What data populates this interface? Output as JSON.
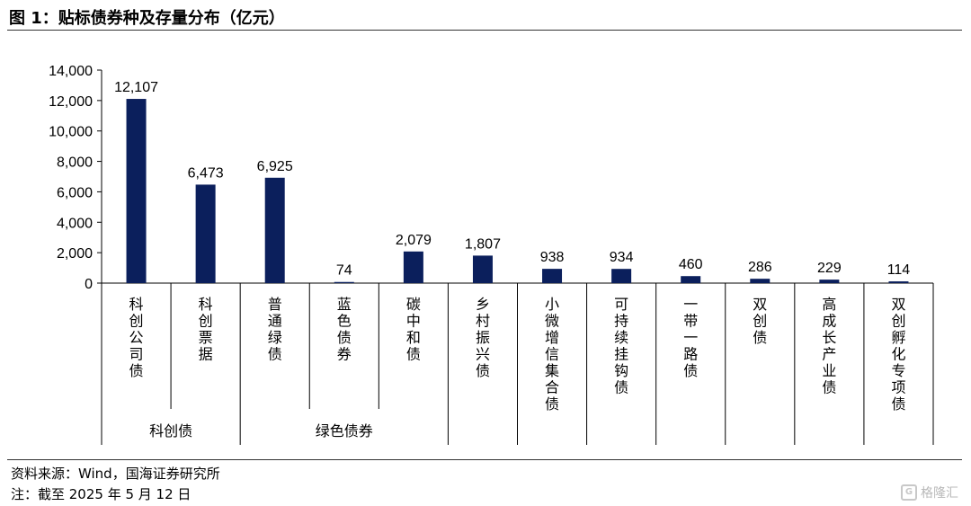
{
  "header": {
    "title": "图 1：贴标债券种及存量分布（亿元）"
  },
  "footer": {
    "source": "资料来源：Wind，国海证券研究所",
    "note": "注：截至 2025 年 5 月 12 日"
  },
  "watermark": {
    "text": "格隆汇",
    "icon": "glh-logo-icon"
  },
  "colors": {
    "bar": "#0b1f5c",
    "axis": "#000000"
  },
  "chart_data": {
    "type": "bar",
    "title": "",
    "xlabel": "",
    "ylabel": "",
    "ylim": [
      0,
      14000
    ],
    "yticks": [
      "0",
      "2,000",
      "4,000",
      "6,000",
      "8,000",
      "10,000",
      "12,000",
      "14,000"
    ],
    "categories": [
      "科创公司债",
      "科创票据",
      "普通绿债",
      "蓝色债券",
      "碳中和债",
      "乡村振兴债",
      "小微增信集合债",
      "可持续挂钩债",
      "一带一路债",
      "双创债",
      "高成长产业债",
      "双创孵化专项债"
    ],
    "values": [
      12107,
      6473,
      6925,
      74,
      2079,
      1807,
      938,
      934,
      460,
      286,
      229,
      114
    ],
    "value_labels": [
      "12,107",
      "6,473",
      "6,925",
      "74",
      "2,079",
      "1,807",
      "938",
      "934",
      "460",
      "286",
      "229",
      "114"
    ],
    "groups": [
      {
        "label": "科创债",
        "members": [
          "科创公司债",
          "科创票据"
        ]
      },
      {
        "label": "绿色债券",
        "members": [
          "普通绿债",
          "蓝色债券",
          "碳中和债"
        ]
      }
    ]
  }
}
